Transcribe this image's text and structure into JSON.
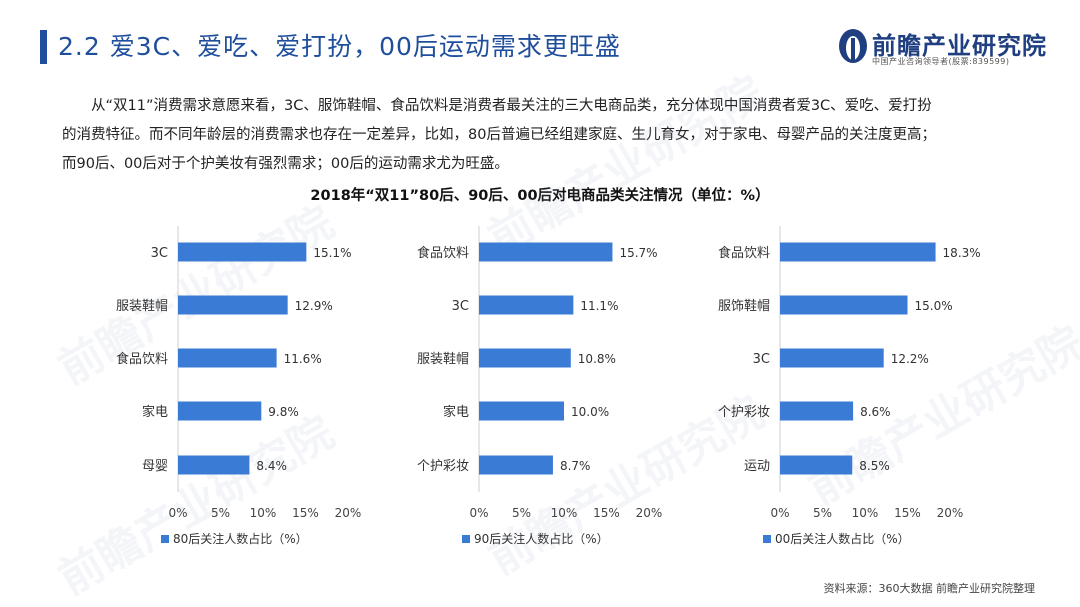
{
  "header": {
    "title": "2.2 爱3C、爱吃、爱打扮，00后运动需求更旺盛",
    "logo_name": "前瞻产业研究院",
    "logo_sub": "中国产业咨询领导者(股票:839599)",
    "watermark_text": "前瞻产业研究院"
  },
  "paragraph": {
    "line1": "从“双11”消费需求意愿来看，3C、服饰鞋帽、食品饮料是消费者最关注的三大电商品类，充分体现中国消费者爱3C、爱吃、爱打扮",
    "line2": "的消费特征。而不同年龄层的消费需求也存在一定差异，比如，80后普遍已经组建家庭、生儿育女，对于家电、母婴产品的关注度更高；",
    "line3": "而90后、00后对于个护美妆有强烈需求；00后的运动需求尤为旺盛。"
  },
  "footer": {
    "source": "资料来源：360大数据 前瞻产业研究院整理"
  },
  "colors": {
    "title_blue": "#1f4e9c",
    "bar_blue": "#3a7bd5"
  },
  "chart_data": [
    {
      "type": "bar",
      "orientation": "horizontal",
      "title": "2018年“双11”80后、90后、00后对电商品类关注情况（单位：%）",
      "categories": [
        "3C",
        "服装鞋帽",
        "食品饮料",
        "家电",
        "母婴"
      ],
      "values": [
        15.1,
        12.9,
        11.6,
        9.8,
        8.4
      ],
      "value_labels": [
        "15.1%",
        "12.9%",
        "11.6%",
        "9.8%",
        "8.4%"
      ],
      "series_name": "80后关注人数占比（%）",
      "xlim": [
        0,
        20
      ],
      "xticks": [
        "0%",
        "5%",
        "10%",
        "15%",
        "20%"
      ],
      "legend_position": "bottom-left",
      "grid": false
    },
    {
      "type": "bar",
      "orientation": "horizontal",
      "categories": [
        "食品饮料",
        "3C",
        "服装鞋帽",
        "家电",
        "个护彩妆"
      ],
      "values": [
        15.7,
        11.1,
        10.8,
        10.0,
        8.7
      ],
      "value_labels": [
        "15.7%",
        "11.1%",
        "10.8%",
        "10.0%",
        "8.7%"
      ],
      "series_name": "90后关注人数占比（%）",
      "xlim": [
        0,
        20
      ],
      "xticks": [
        "0%",
        "5%",
        "10%",
        "15%",
        "20%"
      ],
      "legend_position": "bottom-left",
      "grid": false
    },
    {
      "type": "bar",
      "orientation": "horizontal",
      "categories": [
        "食品饮料",
        "服饰鞋帽",
        "3C",
        "个护彩妆",
        "运动"
      ],
      "values": [
        18.3,
        15.0,
        12.2,
        8.6,
        8.5
      ],
      "value_labels": [
        "18.3%",
        "15.0%",
        "12.2%",
        "8.6%",
        "8.5%"
      ],
      "series_name": "00后关注人数占比（%）",
      "xlim": [
        0,
        20
      ],
      "xticks": [
        "0%",
        "5%",
        "10%",
        "15%",
        "20%"
      ],
      "legend_position": "bottom-left",
      "grid": false
    }
  ]
}
